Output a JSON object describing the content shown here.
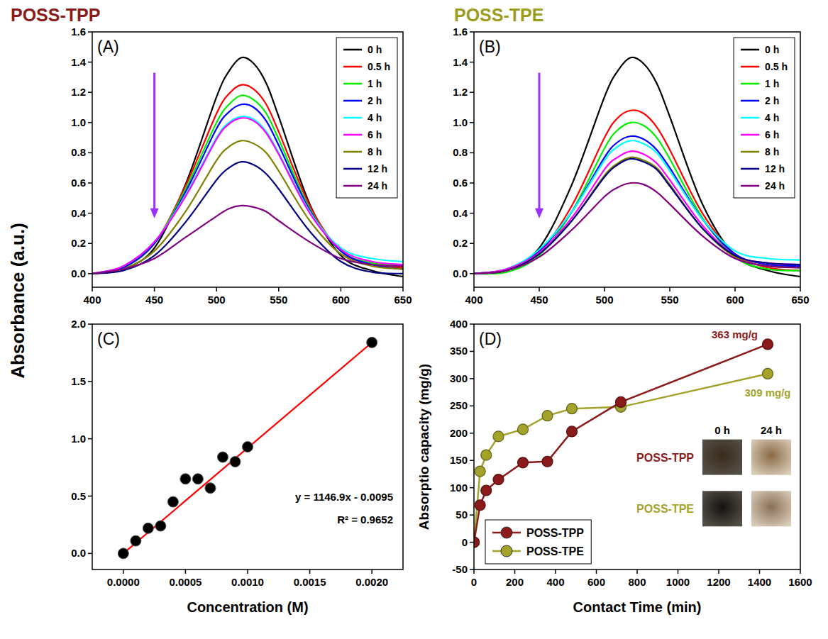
{
  "chart_data": [
    {
      "type": "line",
      "title": "POSS-TPP",
      "color": "#8b1a1a",
      "panel_label": "(A)",
      "y_label": "Absorbance (a.u.)",
      "x": [
        400,
        425,
        450,
        475,
        500,
        510,
        520,
        530,
        540,
        550,
        575,
        600,
        625,
        650
      ],
      "xlim": [
        400,
        650
      ],
      "xticks": [
        400,
        450,
        500,
        550,
        600,
        650
      ],
      "ylim": [
        -0.09,
        1.6
      ],
      "yticks": [
        {
          "value": 0,
          "label": "0.0"
        },
        {
          "value": 0.2,
          "label": "0.2"
        },
        {
          "value": 0.4,
          "label": "0.4"
        },
        {
          "value": 0.6,
          "label": "0.6"
        },
        {
          "value": 0.8,
          "label": "0.8"
        },
        {
          "value": 1.0,
          "label": "1.0"
        },
        {
          "value": 1.2,
          "label": "1.2"
        },
        {
          "value": 1.4,
          "label": "1.4"
        },
        {
          "value": 1.6,
          "label": "1.6"
        }
      ],
      "legend": "upper right",
      "series": [
        {
          "name": "0 h",
          "color": "#000000",
          "values": [
            0,
            0.03,
            0.17,
            0.59,
            1.17,
            1.34,
            1.43,
            1.39,
            1.26,
            1.04,
            0.46,
            0.12,
            0.02,
            -0.02
          ]
        },
        {
          "name": "0.5 h",
          "color": "#ff0000",
          "values": [
            0,
            0.04,
            0.2,
            0.58,
            1.06,
            1.19,
            1.25,
            1.22,
            1.12,
            0.94,
            0.45,
            0.15,
            0.06,
            0.04
          ]
        },
        {
          "name": "1 h",
          "color": "#00ee00",
          "values": [
            0,
            0.04,
            0.2,
            0.56,
            1.0,
            1.12,
            1.18,
            1.15,
            1.06,
            0.89,
            0.43,
            0.15,
            0.07,
            0.05
          ]
        },
        {
          "name": "2 h",
          "color": "#0000ff",
          "values": [
            0,
            0.04,
            0.2,
            0.54,
            0.96,
            1.07,
            1.12,
            1.1,
            1.01,
            0.85,
            0.42,
            0.15,
            0.06,
            0.03
          ]
        },
        {
          "name": "4 h",
          "color": "#00ffff",
          "values": [
            0,
            0.05,
            0.21,
            0.52,
            0.9,
            1.0,
            1.04,
            1.02,
            0.94,
            0.8,
            0.41,
            0.17,
            0.1,
            0.08
          ]
        },
        {
          "name": "6 h",
          "color": "#ff00ff",
          "values": [
            0,
            0.05,
            0.21,
            0.51,
            0.89,
            0.99,
            1.03,
            1.01,
            0.93,
            0.79,
            0.4,
            0.16,
            0.08,
            0.06
          ]
        },
        {
          "name": "8 h",
          "color": "#808000",
          "values": [
            0,
            0.03,
            0.15,
            0.41,
            0.75,
            0.84,
            0.88,
            0.86,
            0.8,
            0.68,
            0.35,
            0.13,
            0.05,
            0.03
          ]
        },
        {
          "name": "12 h",
          "color": "#000080",
          "values": [
            0,
            0.02,
            0.12,
            0.34,
            0.62,
            0.7,
            0.74,
            0.72,
            0.66,
            0.56,
            0.28,
            0.08,
            0.01,
            0
          ]
        },
        {
          "name": "24 h",
          "color": "#800080",
          "values": [
            0,
            0.03,
            0.1,
            0.24,
            0.38,
            0.43,
            0.45,
            0.44,
            0.41,
            0.35,
            0.21,
            0.1,
            0.06,
            0.05
          ]
        }
      ]
    },
    {
      "type": "line",
      "title": "POSS-TPE",
      "color": "#9c9c1e",
      "panel_label": "(B)",
      "x": [
        400,
        425,
        450,
        475,
        500,
        510,
        520,
        530,
        540,
        550,
        575,
        600,
        625,
        650
      ],
      "xlim": [
        400,
        650
      ],
      "xticks": [
        400,
        450,
        500,
        550,
        600,
        650
      ],
      "ylim": [
        -0.09,
        1.6
      ],
      "yticks": [
        {
          "value": 0,
          "label": "0.0"
        },
        {
          "value": 0.2,
          "label": "0.2"
        },
        {
          "value": 0.4,
          "label": "0.4"
        },
        {
          "value": 0.6,
          "label": "0.6"
        },
        {
          "value": 0.8,
          "label": "0.8"
        },
        {
          "value": 1.0,
          "label": "1.0"
        },
        {
          "value": 1.2,
          "label": "1.2"
        },
        {
          "value": 1.4,
          "label": "1.4"
        },
        {
          "value": 1.6,
          "label": "1.6"
        }
      ],
      "legend": "upper right",
      "series": [
        {
          "name": "0 h",
          "color": "#000000",
          "values": [
            0,
            0.03,
            0.17,
            0.59,
            1.17,
            1.34,
            1.43,
            1.39,
            1.26,
            1.04,
            0.46,
            0.12,
            0.02,
            -0.02
          ]
        },
        {
          "name": "0.5 h",
          "color": "#ff0000",
          "values": [
            0,
            0.02,
            0.14,
            0.45,
            0.9,
            1.03,
            1.08,
            1.06,
            0.97,
            0.82,
            0.4,
            0.13,
            0.04,
            0.02
          ]
        },
        {
          "name": "1 h",
          "color": "#00ee00",
          "values": [
            0,
            0.01,
            0.12,
            0.41,
            0.83,
            0.95,
            1.0,
            0.98,
            0.9,
            0.76,
            0.37,
            0.11,
            0.03,
            0.02
          ]
        },
        {
          "name": "2 h",
          "color": "#0000ff",
          "values": [
            0,
            0.03,
            0.15,
            0.41,
            0.77,
            0.87,
            0.91,
            0.89,
            0.82,
            0.7,
            0.36,
            0.13,
            0.06,
            0.05
          ]
        },
        {
          "name": "4 h",
          "color": "#00ffff",
          "values": [
            0,
            0.03,
            0.16,
            0.41,
            0.75,
            0.84,
            0.88,
            0.86,
            0.8,
            0.68,
            0.36,
            0.15,
            0.1,
            0.09
          ]
        },
        {
          "name": "6 h",
          "color": "#ff00ff",
          "values": [
            0,
            0.03,
            0.14,
            0.37,
            0.69,
            0.77,
            0.81,
            0.79,
            0.73,
            0.62,
            0.32,
            0.12,
            0.07,
            0.06
          ]
        },
        {
          "name": "8 h",
          "color": "#808000",
          "values": [
            0,
            0.02,
            0.13,
            0.35,
            0.65,
            0.73,
            0.77,
            0.75,
            0.7,
            0.59,
            0.3,
            0.11,
            0.05,
            0.04
          ]
        },
        {
          "name": "12 h",
          "color": "#000080",
          "values": [
            0,
            0.02,
            0.13,
            0.35,
            0.64,
            0.72,
            0.76,
            0.74,
            0.69,
            0.58,
            0.3,
            0.12,
            0.07,
            0.06
          ]
        },
        {
          "name": "24 h",
          "color": "#800080",
          "values": [
            0,
            0.02,
            0.11,
            0.29,
            0.51,
            0.57,
            0.6,
            0.59,
            0.54,
            0.46,
            0.25,
            0.1,
            0.05,
            0.04
          ]
        }
      ]
    },
    {
      "type": "scatter",
      "panel_label": "(C)",
      "x_label": "Concentration (M)",
      "x": [
        0,
        0.0001,
        0.0002,
        0.0003,
        0.0004,
        0.0005,
        0.0006,
        0.0007,
        0.0008,
        0.0009,
        0.001,
        0.002
      ],
      "xlim": [
        -0.00025,
        0.00225
      ],
      "xticks": [
        {
          "value": 0,
          "label": "0.0000"
        },
        {
          "value": 0.0005,
          "label": "0.0005"
        },
        {
          "value": 0.001,
          "label": "0.0010"
        },
        {
          "value": 0.0015,
          "label": "0.0015"
        },
        {
          "value": 0.002,
          "label": "0.0020"
        }
      ],
      "ylim": [
        -0.14,
        2.0
      ],
      "yticks": [
        {
          "value": 0,
          "label": "0.0"
        },
        {
          "value": 0.5,
          "label": "0.5"
        },
        {
          "value": 1.0,
          "label": "1.0"
        },
        {
          "value": 1.5,
          "label": "1.5"
        },
        {
          "value": 2.0,
          "label": "2.0"
        }
      ],
      "annotations": [
        "y = 1146.9x - 0.0095",
        "R² = 0.9652"
      ],
      "series": [
        {
          "type": "scatter",
          "color": "#000000",
          "marker": "circle",
          "values": [
            0,
            0.11,
            0.22,
            0.24,
            0.45,
            0.65,
            0.65,
            0.57,
            0.84,
            0.8,
            0.93,
            1.84
          ]
        },
        {
          "type": "line",
          "color": "#ff0000",
          "x": [
            0,
            0.002
          ],
          "values": [
            0,
            1.84
          ]
        }
      ]
    },
    {
      "type": "line",
      "panel_label": "(D)",
      "x_label": "Contact Time (min)",
      "y_label": "Absorptio capacity (mg/g)",
      "x": [
        0,
        30,
        60,
        120,
        240,
        360,
        480,
        720,
        1440
      ],
      "xlim": [
        0,
        1600
      ],
      "xticks": [
        0,
        200,
        400,
        600,
        800,
        1000,
        1200,
        1400,
        1600
      ],
      "ylim": [
        -50,
        400
      ],
      "yticks": [
        -50,
        0,
        50,
        100,
        150,
        200,
        250,
        300,
        350,
        400
      ],
      "legend": "lower left",
      "annotations": [
        "363 mg/g",
        "309 mg/g"
      ],
      "inset_labels": [
        "0 h",
        "24 h",
        "POSS-TPP",
        "POSS-TPE"
      ],
      "series": [
        {
          "name": "POSS-TPP",
          "color": "#8b1a1a",
          "marker": "circle",
          "values": [
            0,
            68,
            95,
            115,
            146,
            148,
            203,
            257,
            363
          ]
        },
        {
          "name": "POSS-TPE",
          "color": "#a3a32b",
          "marker": "circle",
          "values": [
            0,
            130,
            160,
            194,
            207,
            232,
            245,
            248,
            309
          ]
        }
      ]
    }
  ]
}
